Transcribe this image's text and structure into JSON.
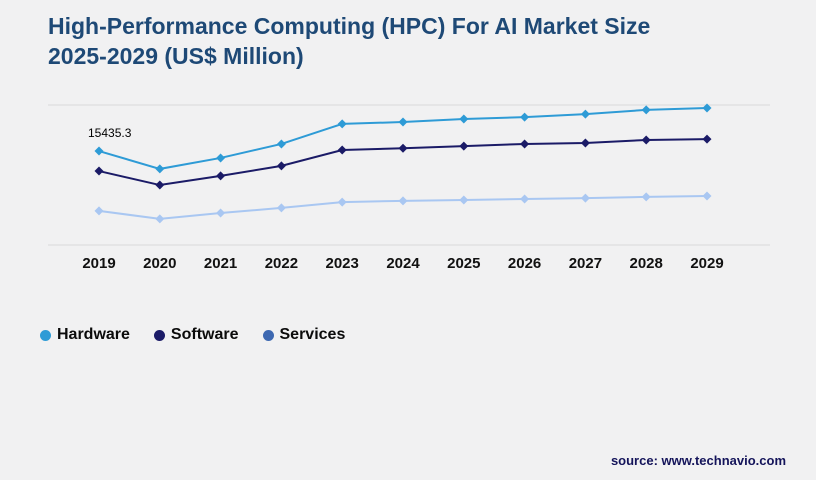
{
  "header": {
    "title_line1": "High-Performance Computing (HPC) For AI Market Size",
    "title_line2": "2025-2029 (US$ Million)"
  },
  "chart_data": {
    "type": "line",
    "title": "High-Performance Computing (HPC) For AI Market Size 2025-2029 (US$ Million)",
    "xlabel": "",
    "ylabel": "US$ Million",
    "categories": [
      "2019",
      "2020",
      "2021",
      "2022",
      "2023",
      "2024",
      "2025",
      "2026",
      "2027",
      "2028",
      "2029"
    ],
    "series": [
      {
        "name": "Hardware",
        "color": "#2E9BD6",
        "values": [
          15435.3,
          12500,
          14300,
          16600,
          19900,
          20200,
          20700,
          21000,
          21500,
          22200,
          22500
        ]
      },
      {
        "name": "Software",
        "color": "#1B1B67",
        "values": [
          12150,
          9850,
          11350,
          13000,
          15600,
          15900,
          16250,
          16600,
          16750,
          17250,
          17400
        ]
      },
      {
        "name": "Services",
        "color": "#A9C7F2",
        "legend_color": "#3D68B1",
        "values": [
          5600,
          4300,
          5250,
          6100,
          7050,
          7250,
          7400,
          7550,
          7700,
          7900,
          8050
        ]
      }
    ],
    "ylim": [
      0,
      23000
    ],
    "grid": "horizontal lines at min and max only",
    "legend_position": "bottom-left",
    "marker": "diamond",
    "annotations": [
      {
        "series": "Hardware",
        "category": "2019",
        "text": "15435.3"
      }
    ]
  },
  "footer": {
    "source_label": "source: www.technavio.com"
  },
  "colors": {
    "background": "#f1f1f2",
    "title": "#1e4976",
    "gridline": "#d9d9d9",
    "axis_text": "#111111"
  }
}
